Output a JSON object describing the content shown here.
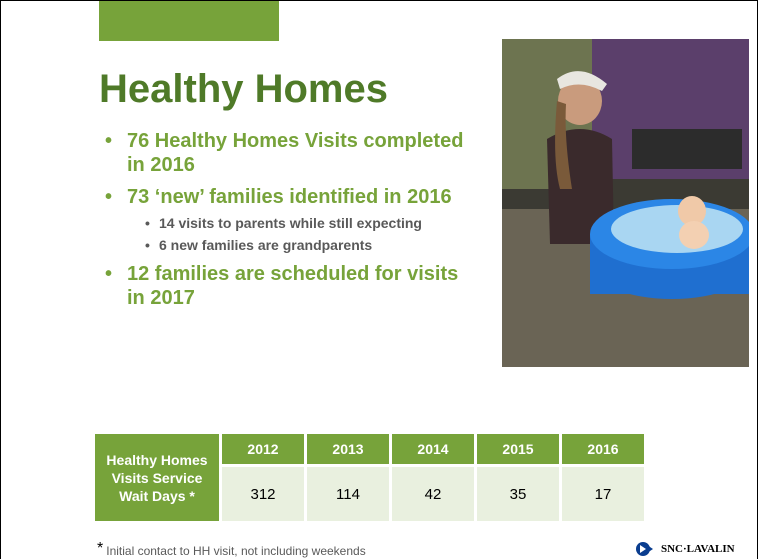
{
  "slide": {
    "title": "Healthy Homes",
    "bullets": [
      {
        "text": "76 Healthy Homes Visits completed in 2016"
      },
      {
        "text": "73 ‘new’ families identified in 2016",
        "sub": [
          "14 visits to parents while still expecting",
          "6 new families are grandparents"
        ]
      },
      {
        "text": "12 families are scheduled for visits in 2017"
      }
    ],
    "table": {
      "row_header": "Healthy Homes Visits Service Wait Days *",
      "columns": [
        "2012",
        "2013",
        "2014",
        "2015",
        "2016"
      ],
      "values": [
        312,
        114,
        42,
        35,
        17
      ]
    },
    "footnote": {
      "marker": "*",
      "text": "Initial contact to HH visit, not including weekends"
    },
    "logo": "SNC·LAVALIN"
  }
}
